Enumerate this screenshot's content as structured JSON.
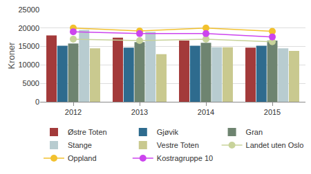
{
  "chart_data": {
    "type": "bar",
    "y_label": "Kroner",
    "categories": [
      "2012",
      "2013",
      "2014",
      "2015"
    ],
    "series": [
      {
        "name": "Østre Toten",
        "type": "bar",
        "color": "#a33a3a",
        "values": [
          18000,
          17400,
          16600,
          14700
        ]
      },
      {
        "name": "Gjøvik",
        "type": "bar",
        "color": "#2e6b8e",
        "values": [
          15200,
          14700,
          15200,
          15200
        ]
      },
      {
        "name": "Gran",
        "type": "bar",
        "color": "#6e8470",
        "values": [
          15800,
          16200,
          16000,
          16600
        ]
      },
      {
        "name": "Stange",
        "type": "bar",
        "color": "#b8ccd0",
        "values": [
          19500,
          19000,
          14800,
          14500
        ]
      },
      {
        "name": "Vestre Toten",
        "type": "bar",
        "color": "#c9c98f",
        "values": [
          14500,
          12900,
          14800,
          13800
        ]
      },
      {
        "name": "Landet uten Oslo",
        "type": "line",
        "marker": "circle",
        "color": "#c8d39a",
        "values": [
          17000,
          16600,
          17000,
          16300
        ]
      },
      {
        "name": "Oppland",
        "type": "line",
        "marker": "circle",
        "color": "#f2c12e",
        "values": [
          20000,
          19200,
          20000,
          19100
        ]
      },
      {
        "name": "Kostragruppe 10",
        "type": "line",
        "marker": "circle",
        "color": "#cc44ee",
        "values": [
          19000,
          18500,
          18500,
          17600
        ]
      }
    ],
    "ylim": [
      0,
      25000
    ],
    "yticks": [
      0,
      5000,
      10000,
      15000,
      20000,
      25000
    ],
    "grid": true,
    "legend": "bottom"
  }
}
